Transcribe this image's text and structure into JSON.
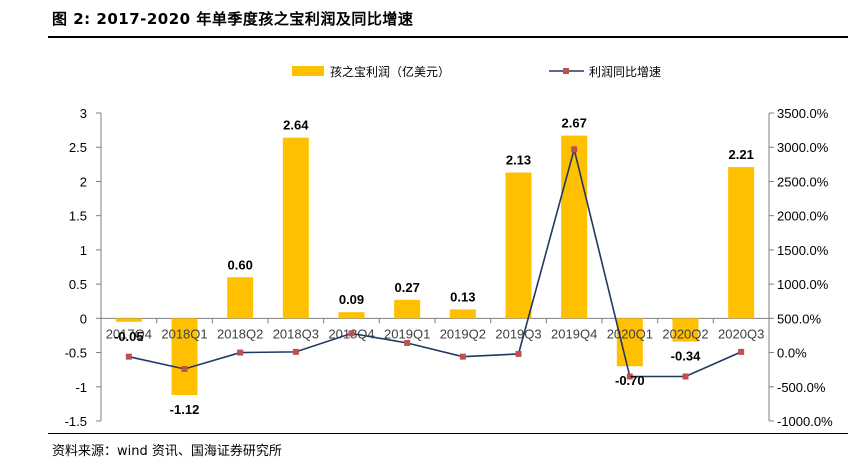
{
  "figure": {
    "title": "图 2:  2017-2020 年单季度孩之宝利润及同比增速",
    "source": "资料来源：wind 资讯、国海证券研究所"
  },
  "chart_data": {
    "type": "bar+line",
    "categories": [
      "2017Q4",
      "2018Q1",
      "2018Q2",
      "2018Q3",
      "2018Q4",
      "2019Q1",
      "2019Q2",
      "2019Q3",
      "2019Q4",
      "2020Q1",
      "2020Q2",
      "2020Q3"
    ],
    "series": [
      {
        "name": "孩之宝利润（亿美元）",
        "type": "bar",
        "axis": "left",
        "color": "#FFC000",
        "values": [
          -0.05,
          -1.12,
          0.6,
          2.64,
          0.09,
          0.27,
          0.13,
          2.13,
          2.67,
          -0.7,
          -0.34,
          2.21
        ],
        "labels": [
          "-0.05",
          "-1.12",
          "0.60",
          "2.64",
          "0.09",
          "0.27",
          "0.13",
          "2.13",
          "2.67",
          "-0.70",
          "-0.34",
          "2.21"
        ]
      },
      {
        "name": "利润同比增速",
        "type": "line",
        "axis": "right",
        "color": "#1F3864",
        "marker_color": "#C0504D",
        "values": [
          -60,
          -240,
          0,
          10,
          280,
          140,
          -60,
          -20,
          2970,
          -350,
          -350,
          10
        ]
      }
    ],
    "y_left": {
      "min": -1.5,
      "max": 3,
      "ticks": [
        -1.5,
        -1,
        -0.5,
        0,
        0.5,
        1,
        1.5,
        2,
        2.5,
        3
      ],
      "tick_labels": [
        "-1.5",
        "-1",
        "-0.5",
        "0",
        "0.5",
        "1",
        "1.5",
        "2",
        "2.5",
        "3"
      ]
    },
    "y_right": {
      "min": -1000,
      "max": 3500,
      "ticks": [
        -1000,
        -500,
        0,
        500,
        1000,
        1500,
        2000,
        2500,
        3000,
        3500
      ],
      "tick_labels": [
        "-1000.0%",
        "-500.0%",
        "0.0%",
        "500.0%",
        "1000.0%",
        "1500.0%",
        "2000.0%",
        "2500.0%",
        "3000.0%",
        "3500.0%"
      ]
    },
    "legend_position": "top-center",
    "grid": false
  }
}
